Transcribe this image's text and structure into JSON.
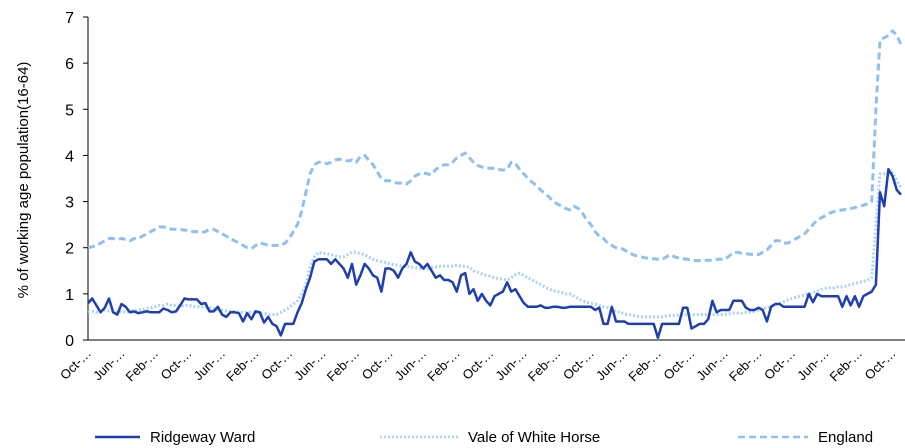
{
  "chart_data": {
    "type": "line",
    "y_label": "% of working age population(16-64)",
    "categories": [
      "Oct-…",
      null,
      null,
      null,
      null,
      null,
      null,
      null,
      "Jun-…",
      null,
      null,
      null,
      null,
      null,
      null,
      null,
      "Feb-…",
      null,
      null,
      null,
      null,
      null,
      null,
      null,
      "Oct-…",
      null,
      null,
      null,
      null,
      null,
      null,
      null,
      "Jun-…",
      null,
      null,
      null,
      null,
      null,
      null,
      null,
      "Feb-…",
      null,
      null,
      null,
      null,
      null,
      null,
      null,
      "Oct-…",
      null,
      null,
      null,
      null,
      null,
      null,
      null,
      "Jun-…",
      null,
      null,
      null,
      null,
      null,
      null,
      null,
      "Feb-…",
      null,
      null,
      null,
      null,
      null,
      null,
      null,
      "Oct-…",
      null,
      null,
      null,
      null,
      null,
      null,
      null,
      "Jun-…",
      null,
      null,
      null,
      null,
      null,
      null,
      null,
      "Feb-…",
      null,
      null,
      null,
      null,
      null,
      null,
      null,
      "Oct-…",
      null,
      null,
      null,
      null,
      null,
      null,
      null,
      "Jun-…",
      null,
      null,
      null,
      null,
      null,
      null,
      null,
      "Feb-…",
      null,
      null,
      null,
      null,
      null,
      null,
      null,
      "Oct-…",
      null,
      null,
      null,
      null,
      null,
      null,
      null,
      "Jun-…",
      null,
      null,
      null,
      null,
      null,
      null,
      null,
      "Feb-…",
      null,
      null,
      null,
      null,
      null,
      null,
      null,
      "Oct-…",
      null,
      null,
      null,
      null,
      null,
      null,
      null,
      "Jun-…",
      null,
      null,
      null,
      null,
      null,
      null,
      null,
      "Feb-…",
      null,
      null,
      null,
      null,
      null,
      null,
      null,
      "Oct-…",
      null,
      null,
      null,
      null,
      null,
      null,
      null,
      "Jun-…",
      null,
      null,
      null,
      null,
      null,
      null,
      null,
      "Feb-…",
      null,
      null,
      null,
      null,
      null,
      null,
      null,
      "Oct-…",
      null,
      null
    ],
    "series": [
      {
        "name": "Ridgeway Ward",
        "color": "#1f3fae",
        "dash": "solid",
        "values": [
          0.8,
          0.9,
          0.75,
          0.6,
          0.7,
          0.9,
          0.6,
          0.55,
          0.78,
          0.72,
          0.6,
          0.62,
          0.58,
          0.6,
          0.62,
          0.6,
          0.6,
          0.6,
          0.68,
          0.65,
          0.6,
          0.62,
          0.75,
          0.9,
          0.88,
          0.88,
          0.88,
          0.78,
          0.8,
          0.62,
          0.62,
          0.72,
          0.55,
          0.5,
          0.6,
          0.6,
          0.58,
          0.4,
          0.58,
          0.45,
          0.62,
          0.6,
          0.38,
          0.5,
          0.35,
          0.3,
          0.1,
          0.35,
          0.35,
          0.35,
          0.6,
          0.8,
          1.1,
          1.35,
          1.7,
          1.75,
          1.75,
          1.75,
          1.65,
          1.75,
          1.65,
          1.55,
          1.35,
          1.65,
          1.2,
          1.4,
          1.65,
          1.55,
          1.4,
          1.35,
          1.05,
          1.55,
          1.55,
          1.5,
          1.35,
          1.55,
          1.65,
          1.9,
          1.7,
          1.65,
          1.55,
          1.65,
          1.5,
          1.35,
          1.4,
          1.3,
          1.3,
          1.25,
          1.05,
          1.4,
          1.45,
          1.0,
          1.1,
          0.85,
          1.0,
          0.85,
          0.75,
          0.95,
          1.0,
          1.05,
          1.25,
          1.05,
          1.1,
          0.95,
          0.8,
          0.72,
          0.72,
          0.72,
          0.75,
          0.7,
          0.7,
          0.72,
          0.72,
          0.7,
          0.7,
          0.72,
          0.72,
          0.72,
          0.72,
          0.72,
          0.72,
          0.65,
          0.7,
          0.35,
          0.35,
          0.72,
          0.4,
          0.4,
          0.4,
          0.35,
          0.35,
          0.35,
          0.35,
          0.35,
          0.35,
          0.35,
          0.05,
          0.35,
          0.35,
          0.35,
          0.35,
          0.35,
          0.7,
          0.7,
          0.25,
          0.3,
          0.35,
          0.35,
          0.45,
          0.85,
          0.6,
          0.65,
          0.65,
          0.65,
          0.85,
          0.85,
          0.85,
          0.7,
          0.65,
          0.65,
          0.7,
          0.65,
          0.4,
          0.72,
          0.78,
          0.78,
          0.72,
          0.72,
          0.72,
          0.72,
          0.72,
          0.72,
          1.0,
          0.82,
          1.0,
          0.95,
          0.95,
          0.95,
          0.95,
          0.95,
          0.72,
          0.95,
          0.75,
          0.95,
          0.72,
          0.95,
          1.0,
          1.05,
          1.2,
          3.2,
          2.9,
          3.7,
          3.55,
          3.25,
          3.15
        ]
      },
      {
        "name": "Vale of White Horse",
        "color": "#a9d3f5",
        "dash": "dotted",
        "values": [
          0.6,
          0.62,
          0.6,
          0.62,
          0.65,
          0.63,
          0.62,
          0.6,
          0.62,
          0.6,
          0.62,
          0.63,
          0.65,
          0.65,
          0.68,
          0.7,
          0.72,
          0.75,
          0.75,
          0.78,
          0.75,
          0.75,
          0.73,
          0.75,
          0.75,
          0.73,
          0.72,
          0.72,
          0.7,
          0.7,
          0.68,
          0.65,
          0.65,
          0.63,
          0.62,
          0.62,
          0.6,
          0.6,
          0.6,
          0.6,
          0.6,
          0.58,
          0.58,
          0.55,
          0.55,
          0.55,
          0.6,
          0.65,
          0.7,
          0.78,
          0.85,
          1.0,
          1.2,
          1.6,
          1.8,
          1.9,
          1.88,
          1.87,
          1.85,
          1.82,
          1.8,
          1.8,
          1.85,
          1.9,
          1.9,
          1.87,
          1.85,
          1.8,
          1.75,
          1.72,
          1.7,
          1.68,
          1.65,
          1.63,
          1.62,
          1.6,
          1.6,
          1.58,
          1.57,
          1.55,
          1.55,
          1.55,
          1.57,
          1.58,
          1.6,
          1.6,
          1.6,
          1.6,
          1.62,
          1.6,
          1.6,
          1.58,
          1.5,
          1.47,
          1.43,
          1.4,
          1.38,
          1.35,
          1.33,
          1.32,
          1.3,
          1.35,
          1.42,
          1.45,
          1.4,
          1.35,
          1.3,
          1.25,
          1.2,
          1.15,
          1.1,
          1.07,
          1.05,
          1.03,
          1.0,
          1.0,
          0.95,
          0.9,
          0.85,
          0.82,
          0.8,
          0.78,
          0.75,
          0.72,
          0.7,
          0.65,
          0.62,
          0.6,
          0.56,
          0.55,
          0.53,
          0.52,
          0.5,
          0.5,
          0.5,
          0.5,
          0.5,
          0.5,
          0.52,
          0.53,
          0.53,
          0.54,
          0.55,
          0.55,
          0.55,
          0.55,
          0.55,
          0.55,
          0.55,
          0.55,
          0.55,
          0.55,
          0.56,
          0.57,
          0.58,
          0.58,
          0.58,
          0.6,
          0.6,
          0.62,
          0.65,
          0.68,
          0.7,
          0.73,
          0.77,
          0.8,
          0.83,
          0.87,
          0.9,
          0.93,
          0.95,
          0.98,
          1.0,
          1.03,
          1.06,
          1.1,
          1.12,
          1.13,
          1.13,
          1.15,
          1.15,
          1.17,
          1.2,
          1.22,
          1.25,
          1.27,
          1.3,
          1.35,
          2.5,
          3.6,
          3.6,
          3.58,
          3.62,
          3.45,
          3.3
        ]
      },
      {
        "name": "England",
        "color": "#90c0ee",
        "dash": "dashed",
        "values": [
          2.0,
          2.02,
          2.05,
          2.1,
          2.15,
          2.2,
          2.2,
          2.18,
          2.2,
          2.18,
          2.15,
          2.2,
          2.2,
          2.25,
          2.3,
          2.35,
          2.4,
          2.45,
          2.45,
          2.43,
          2.4,
          2.4,
          2.4,
          2.38,
          2.38,
          2.35,
          2.35,
          2.33,
          2.35,
          2.4,
          2.4,
          2.35,
          2.3,
          2.25,
          2.2,
          2.15,
          2.1,
          2.05,
          2.0,
          1.98,
          2.05,
          2.1,
          2.08,
          2.05,
          2.05,
          2.05,
          2.05,
          2.1,
          2.2,
          2.35,
          2.5,
          2.8,
          3.2,
          3.6,
          3.8,
          3.85,
          3.85,
          3.82,
          3.85,
          3.9,
          3.92,
          3.9,
          3.88,
          3.9,
          3.85,
          3.98,
          4.0,
          3.9,
          3.8,
          3.65,
          3.5,
          3.45,
          3.45,
          3.42,
          3.4,
          3.4,
          3.38,
          3.45,
          3.55,
          3.6,
          3.62,
          3.6,
          3.58,
          3.7,
          3.75,
          3.8,
          3.8,
          3.85,
          3.95,
          4.0,
          4.05,
          3.95,
          3.85,
          3.78,
          3.75,
          3.73,
          3.72,
          3.72,
          3.7,
          3.68,
          3.7,
          3.85,
          3.82,
          3.7,
          3.6,
          3.5,
          3.42,
          3.35,
          3.25,
          3.18,
          3.1,
          3.0,
          2.95,
          2.9,
          2.85,
          2.82,
          2.9,
          2.85,
          2.75,
          2.6,
          2.5,
          2.35,
          2.25,
          2.2,
          2.1,
          2.05,
          2.0,
          2.0,
          1.95,
          1.9,
          1.85,
          1.82,
          1.8,
          1.78,
          1.77,
          1.76,
          1.75,
          1.75,
          1.8,
          1.85,
          1.8,
          1.78,
          1.76,
          1.75,
          1.73,
          1.72,
          1.72,
          1.72,
          1.73,
          1.73,
          1.75,
          1.75,
          1.75,
          1.82,
          1.9,
          1.9,
          1.88,
          1.87,
          1.86,
          1.85,
          1.85,
          1.9,
          1.95,
          2.05,
          2.15,
          2.15,
          2.1,
          2.1,
          2.15,
          2.2,
          2.25,
          2.3,
          2.4,
          2.5,
          2.6,
          2.65,
          2.7,
          2.75,
          2.78,
          2.8,
          2.82,
          2.83,
          2.85,
          2.87,
          2.9,
          2.92,
          2.95,
          3.0,
          5.0,
          6.5,
          6.55,
          6.6,
          6.7,
          6.6,
          6.4
        ]
      }
    ],
    "ylim": [
      0,
      7
    ],
    "yticks": [
      0,
      1,
      2,
      3,
      4,
      5,
      6,
      7
    ],
    "grid": false,
    "legend": "bottom"
  }
}
